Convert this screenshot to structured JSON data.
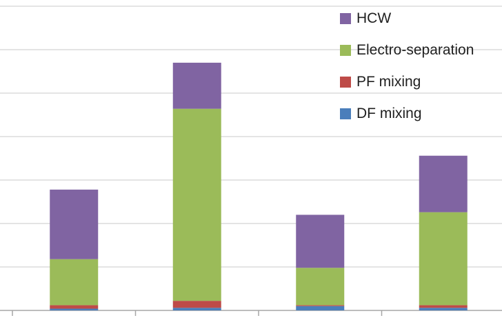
{
  "chart_data": {
    "type": "bar",
    "stacked": true,
    "categories": [
      "",
      "",
      "",
      ""
    ],
    "series": [
      {
        "name": "DF mixing",
        "color": "#4a7ebb",
        "values": [
          0.2,
          0.3,
          0.5,
          0.3
        ]
      },
      {
        "name": "PF mixing",
        "color": "#be4b48",
        "values": [
          0.4,
          0.8,
          0.1,
          0.3
        ]
      },
      {
        "name": "Electro-separation",
        "color": "#9bbb59",
        "values": [
          5.3,
          22.1,
          4.3,
          10.7
        ]
      },
      {
        "name": "HCW",
        "color": "#8064a2",
        "values": [
          8.0,
          5.3,
          6.1,
          6.5
        ]
      }
    ],
    "ylim": [
      0,
      36
    ],
    "y_tick_step": 5,
    "grid": true,
    "legend_position": "top-right",
    "xlabel": "",
    "ylabel": ""
  }
}
